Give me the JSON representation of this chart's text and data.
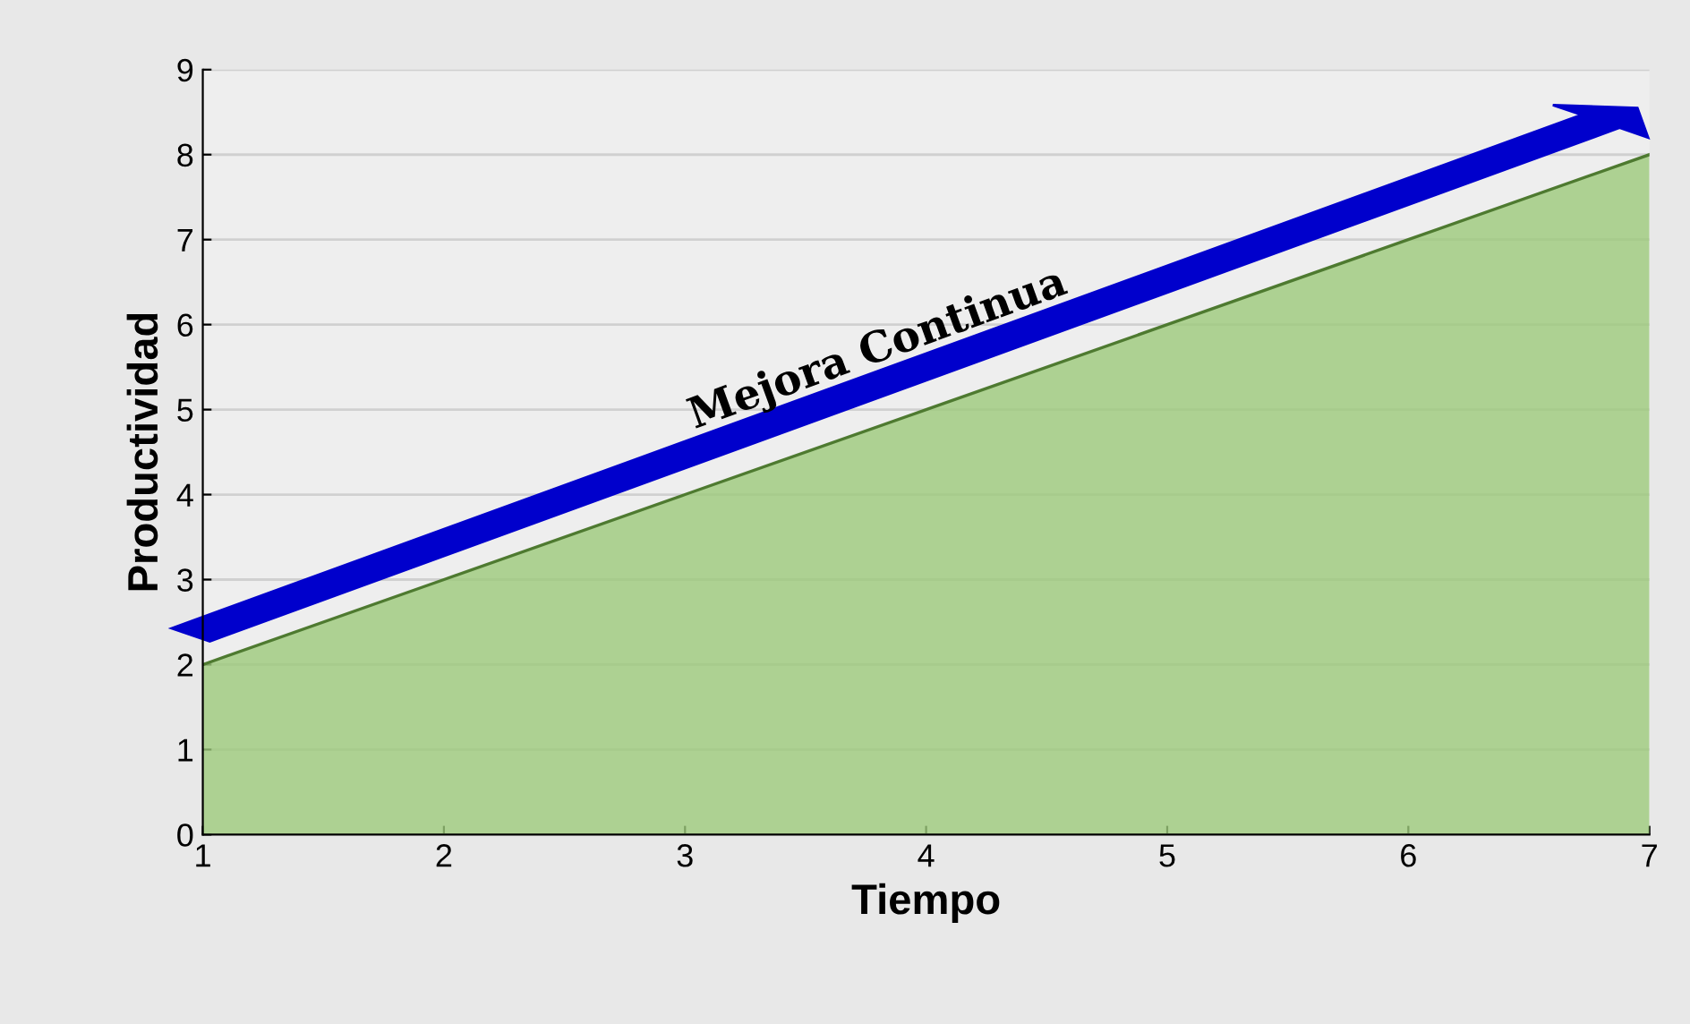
{
  "chart_data": {
    "type": "area",
    "xlabel": "Tiempo",
    "ylabel": "Productividad",
    "x": [
      1,
      2,
      3,
      4,
      5,
      6,
      7
    ],
    "series": [
      {
        "color": "#9cc97a",
        "values": [
          2,
          3,
          4,
          5,
          6,
          7,
          8
        ]
      }
    ],
    "xlim": [
      1,
      7
    ],
    "ylim": [
      0,
      9
    ],
    "xticks": [
      1,
      2,
      3,
      4,
      5,
      6,
      7
    ],
    "yticks": [
      0,
      1,
      2,
      3,
      4,
      5,
      6,
      7,
      8,
      9
    ],
    "grid": "y",
    "legend": false,
    "annotations": [
      "Mejora Continua"
    ]
  }
}
